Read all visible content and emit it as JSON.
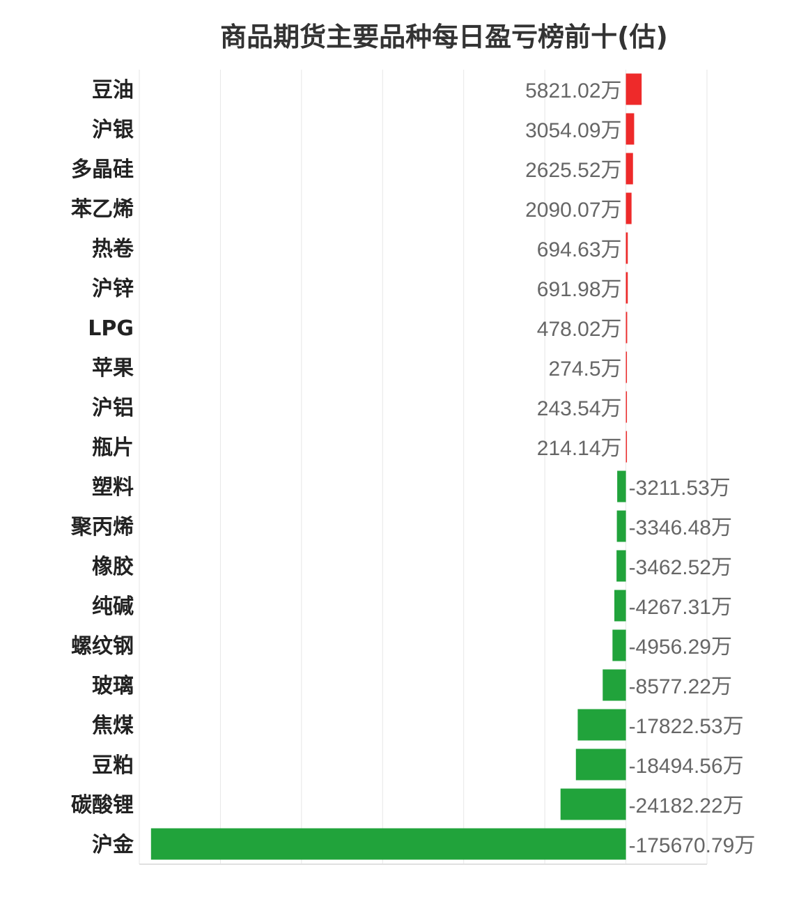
{
  "chart_data": {
    "type": "bar",
    "orientation": "horizontal",
    "title": "商品期货主要品种每日盈亏榜前十(估)",
    "unit_suffix": "万",
    "categories": [
      "豆油",
      "沪银",
      "多晶硅",
      "苯乙烯",
      "热卷",
      "沪锌",
      "LPG",
      "苹果",
      "沪铝",
      "瓶片",
      "塑料",
      "聚丙烯",
      "橡胶",
      "纯碱",
      "螺纹钢",
      "玻璃",
      "焦煤",
      "豆粕",
      "碳酸锂",
      "沪金"
    ],
    "values": [
      5821.02,
      3054.09,
      2625.52,
      2090.07,
      694.63,
      691.98,
      478.02,
      274.5,
      243.54,
      214.14,
      -3211.53,
      -3346.48,
      -3462.52,
      -4267.31,
      -4956.29,
      -8577.22,
      -17822.53,
      -18494.56,
      -24182.22,
      -175670.79
    ],
    "labels": [
      "5821.02万",
      "3054.09万",
      "2625.52万",
      "2090.07万",
      "694.63万",
      "691.98万",
      "478.02万",
      "274.5万",
      "243.54万",
      "214.14万",
      "-3211.53万",
      "-3346.48万",
      "-3462.52万",
      "-4267.31万",
      "-4956.29万",
      "-8577.22万",
      "-17822.53万",
      "-18494.56万",
      "-24182.22万",
      "-175670.79万"
    ],
    "xlim": [
      -180000,
      30000
    ],
    "grid": true,
    "colors": {
      "positive": "#ee2a2a",
      "negative": "#21a33b"
    }
  }
}
